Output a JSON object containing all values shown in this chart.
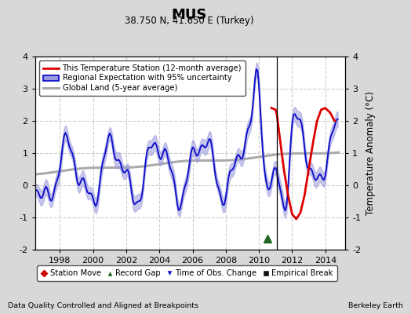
{
  "title": "MUS",
  "subtitle": "38.750 N, 41.650 E (Turkey)",
  "ylabel": "Temperature Anomaly (°C)",
  "footer_left": "Data Quality Controlled and Aligned at Breakpoints",
  "footer_right": "Berkeley Earth",
  "ylim": [
    -2,
    4
  ],
  "xlim": [
    1996.5,
    2015.2
  ],
  "xticks": [
    1998,
    2000,
    2002,
    2004,
    2006,
    2008,
    2010,
    2012,
    2014
  ],
  "yticks": [
    -2,
    -1,
    0,
    1,
    2,
    3,
    4
  ],
  "bg_color": "#d8d8d8",
  "plot_bg_color": "#ffffff",
  "grid_color": "#cccccc",
  "red_color": "#dd0000",
  "blue_color": "#1111cc",
  "blue_fill": "#9999dd",
  "gray_color": "#aaaaaa",
  "break_x": 2011.08,
  "green_x": 2010.5,
  "legend_labels": [
    "This Temperature Station (12-month average)",
    "Regional Expectation with 95% uncertainty",
    "Global Land (5-year average)"
  ],
  "bottom_legend_labels": [
    "Station Move",
    "Record Gap",
    "Time of Obs. Change",
    "Empirical Break"
  ]
}
